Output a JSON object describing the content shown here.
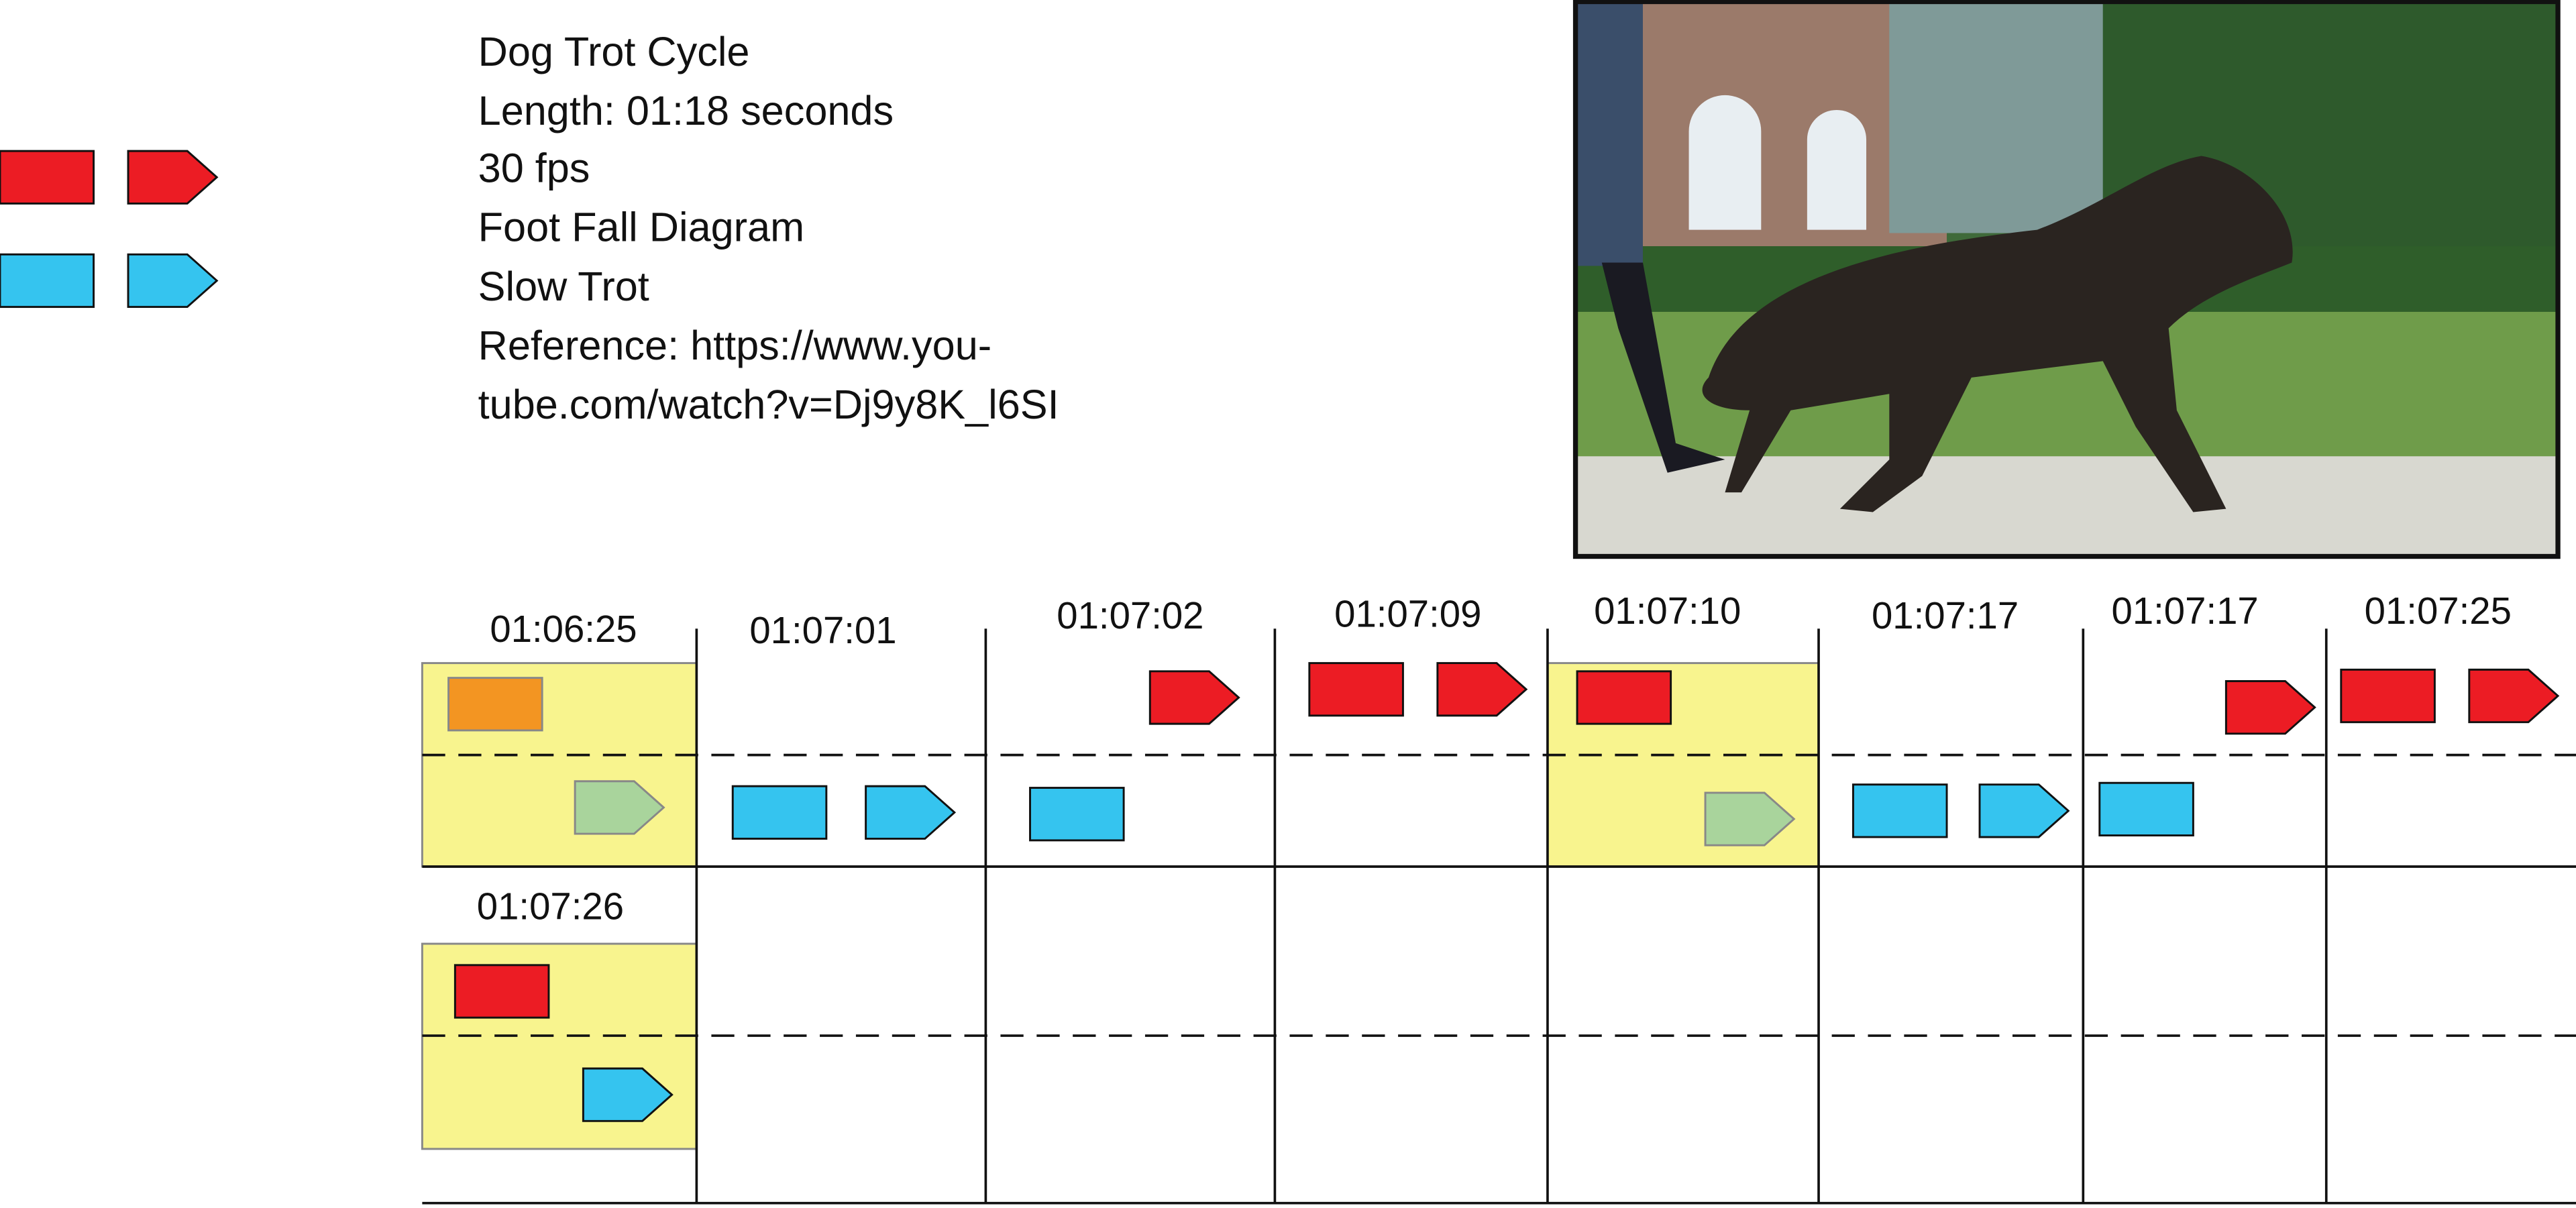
{
  "info": {
    "lines": [
      "Dog Trot Cycle",
      "Length: 01:18 seconds",
      "30 fps",
      "Foot Fall Diagram",
      "Slow Trot",
      "Reference: https://www.you-",
      "tube.com/watch?v=Dj9y8K_l6SI"
    ]
  },
  "frames": [
    {
      "label": "01:06:25"
    },
    {
      "label": "01:07:01"
    },
    {
      "label": "01:07:02"
    },
    {
      "label": "01:07:09"
    },
    {
      "label": "01:07:10"
    },
    {
      "label": "01:07:17"
    },
    {
      "label": "01:07:17"
    },
    {
      "label": "01:07:25"
    },
    {
      "label": "01:07:26"
    }
  ]
}
